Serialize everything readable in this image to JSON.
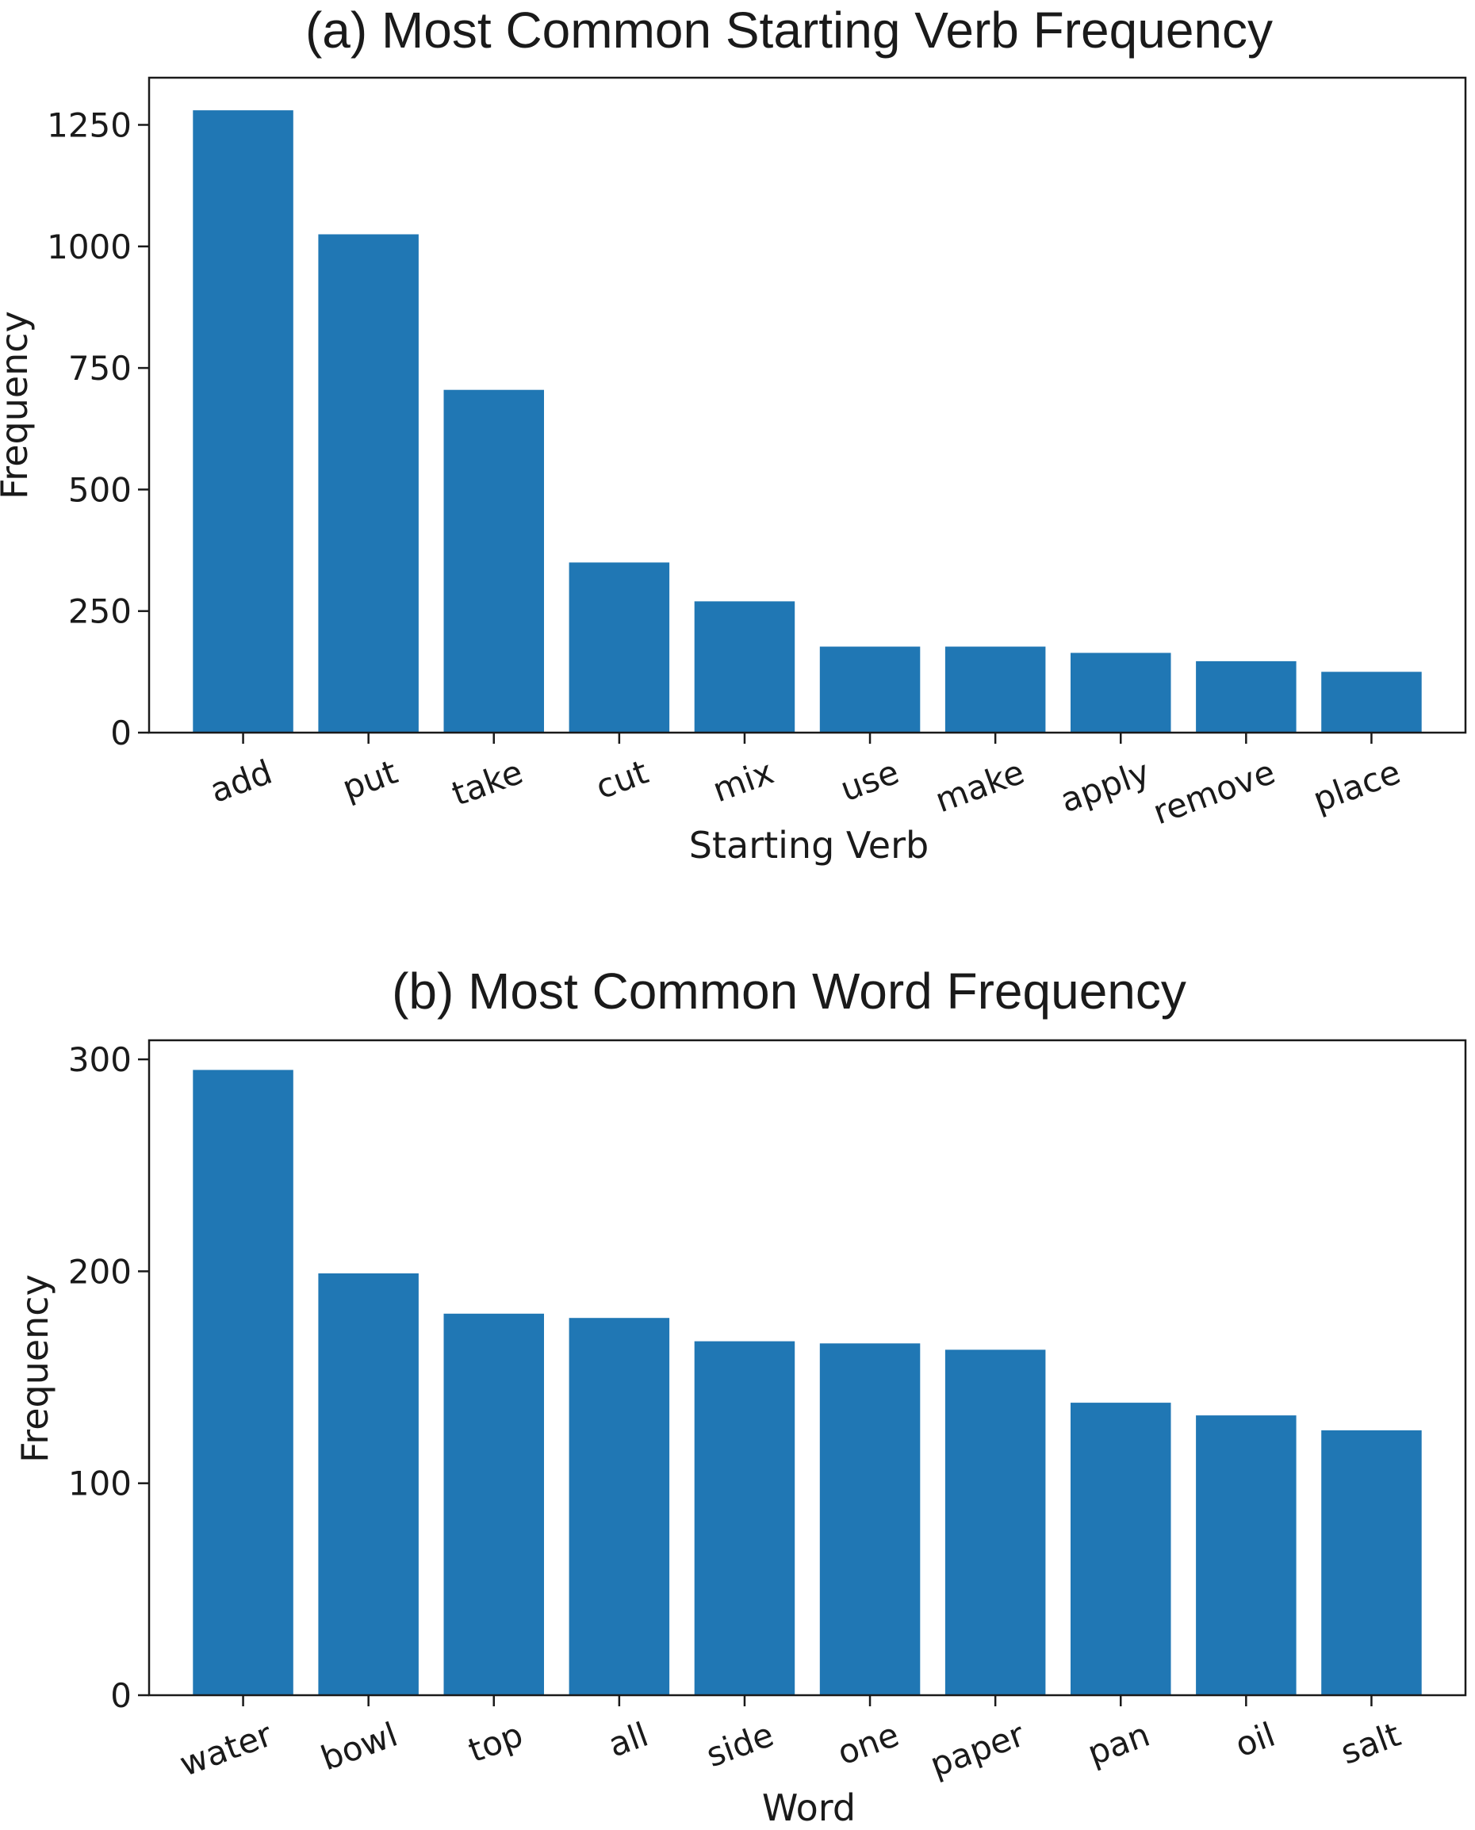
{
  "chart_data": [
    {
      "type": "bar",
      "title": "(a) Most Common Starting Verb Frequency",
      "xlabel": "Starting Verb",
      "ylabel": "Frequency",
      "categories": [
        "add",
        "put",
        "take",
        "cut",
        "mix",
        "use",
        "make",
        "apply",
        "remove",
        "place"
      ],
      "values": [
        1280,
        1025,
        705,
        350,
        270,
        177,
        177,
        164,
        147,
        125
      ],
      "yticks": [
        0,
        250,
        500,
        750,
        1000,
        1250
      ],
      "ylim": [
        0,
        1347
      ],
      "grid": false,
      "bar_color": "#2077b4"
    },
    {
      "type": "bar",
      "title": "(b) Most Common Word Frequency",
      "xlabel": "Word",
      "ylabel": "Frequency",
      "categories": [
        "water",
        "bowl",
        "top",
        "all",
        "side",
        "one",
        "paper",
        "pan",
        "oil",
        "salt"
      ],
      "values": [
        295,
        199,
        180,
        178,
        167,
        166,
        163,
        138,
        132,
        125
      ],
      "yticks": [
        0,
        100,
        200,
        300
      ],
      "ylim": [
        0,
        309
      ],
      "grid": false,
      "bar_color": "#2077b4"
    }
  ]
}
